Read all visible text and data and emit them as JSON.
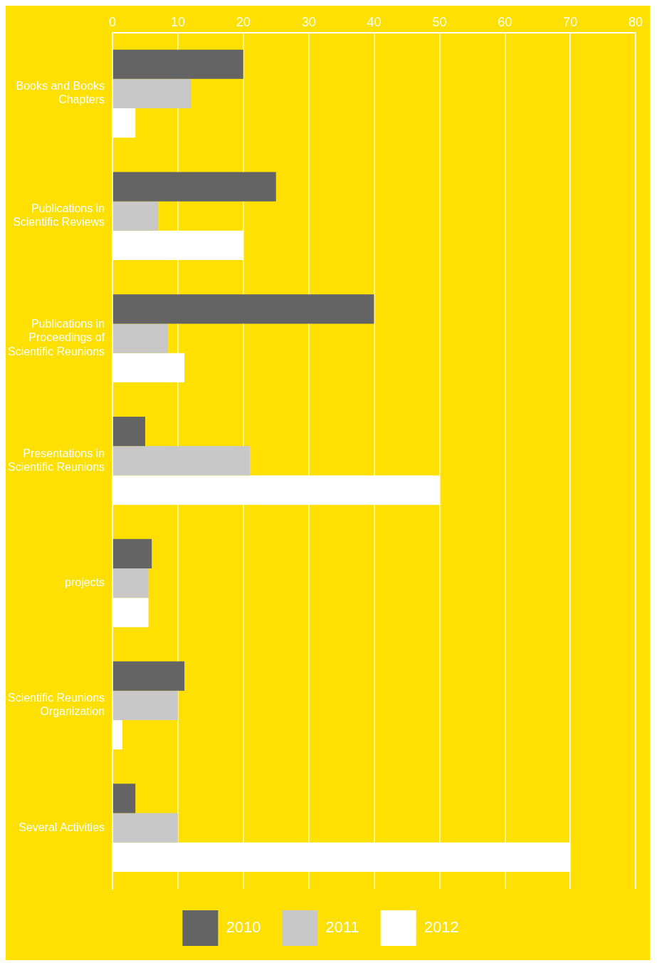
{
  "chart_data": {
    "type": "bar",
    "orientation": "horizontal",
    "categories": [
      "Books and Books Chapters",
      "Publications in Scientific Reviews",
      "Publications in Proceedings of Scientific Reunions",
      "Presentations in Scientific Reunions",
      "projects",
      "Scientific Reunions Organization",
      "Several Activities"
    ],
    "series": [
      {
        "name": "2010",
        "color": "#646464",
        "values": [
          20,
          25,
          40,
          5,
          6,
          11,
          3.5
        ]
      },
      {
        "name": "2011",
        "color": "#c8c8c8",
        "values": [
          12,
          7,
          8.5,
          21,
          5.5,
          10,
          10
        ]
      },
      {
        "name": "2012",
        "color": "#ffffff",
        "values": [
          3.5,
          20,
          11,
          50,
          5.5,
          1.5,
          70
        ]
      }
    ],
    "xlim": [
      0,
      80
    ],
    "xticks": [
      0,
      10,
      20,
      30,
      40,
      50,
      60,
      70,
      80
    ],
    "grid": "x",
    "legend": "bottom"
  }
}
